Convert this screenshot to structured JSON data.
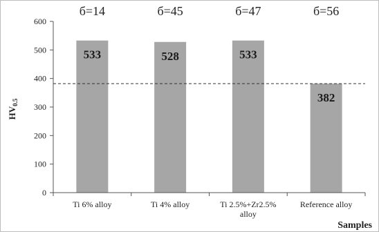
{
  "chart_data": {
    "type": "bar",
    "categories": [
      "Ti 6% alloy",
      "Ti 4% alloy",
      "Ti 2.5%+Zr2.5% alloy",
      "Reference alloy"
    ],
    "category_lines": [
      [
        "Ti 6% alloy"
      ],
      [
        "Ti 4% alloy"
      ],
      [
        "Ti 2.5%+Zr2.5%",
        "alloy"
      ],
      [
        "Reference alloy"
      ]
    ],
    "values": [
      533,
      528,
      533,
      382
    ],
    "data_labels": [
      "533",
      "528",
      "533",
      "382"
    ],
    "sigma_labels": [
      "б=14",
      "б=45",
      "б=47",
      "б=56"
    ],
    "ylabel": "HV",
    "ylabel_subscript": "0.5",
    "xlabel": "Samples",
    "ylim": [
      0,
      600
    ],
    "yticks": [
      0,
      100,
      200,
      300,
      400,
      500,
      600
    ],
    "reference_line": 382,
    "bar_color": "#a6a6a6",
    "grid": false,
    "legend": "none"
  }
}
